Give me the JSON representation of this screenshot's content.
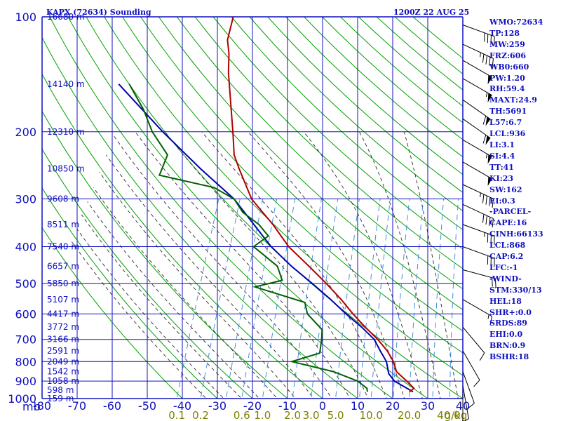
{
  "header": {
    "title": "KAPX (72634) Sounding",
    "datetime": "1200Z 22 AUG 25"
  },
  "indices": [
    "WMO:72634",
    "TP:128",
    "MW:259",
    "FRZ:606",
    "WB0:660",
    "PW:1.20",
    "RH:59.4",
    "MAXT:24.9",
    "TH:5691",
    "L57:6.7",
    "LCL:936",
    "LI:3.1",
    "SI:4.4",
    "TT:41",
    "KI:23",
    "SW:162",
    "EI:0.3",
    "-PARCEL-",
    "CAPE:16",
    "CINH:66133",
    "LCL:868",
    "CAP:6.2",
    "LFC:-1",
    "-WIND-",
    "STM:330/13",
    "HEL:18",
    "SHR+:0.0",
    "SRDS:89",
    "EHI:0.0",
    "BRN:0.9",
    "BSHR:18"
  ],
  "colors": {
    "grid": "#1010c0",
    "isotherm": "#1010c0",
    "dry_adiabat": "#00a000",
    "moist_adiabat": "#404040",
    "mixing_ratio": "#4090e0",
    "temperature": "#b00000",
    "dewpoint": "#006000",
    "parcel": "#0000b0",
    "wind": "#000000"
  },
  "chart_data": {
    "type": "skew-t",
    "ylabel_unit": "mb",
    "pressure_levels": [
      100,
      200,
      300,
      400,
      500,
      600,
      700,
      800,
      900,
      1000
    ],
    "temperature_ticks": [
      -80,
      -70,
      -60,
      -50,
      -40,
      -30,
      -20,
      -10,
      0,
      10,
      20,
      30,
      40
    ],
    "temperature_tick_labels": [
      "-80",
      "-70",
      "-60",
      "-50",
      "-40",
      "-30",
      "-20",
      "-10",
      "0",
      "10",
      "20",
      "30",
      "40"
    ],
    "mixing_ratio_labels": [
      "0.1",
      "0.2",
      "0.6",
      "1.0",
      "2.0",
      "3.0",
      "5.0",
      "10.0",
      "20.0",
      "40.0"
    ],
    "mixing_ratio_unit": "g/kg",
    "height_labels": [
      {
        "p": 100,
        "text": "16680 m"
      },
      {
        "p": 150,
        "text": "14140 m"
      },
      {
        "p": 200,
        "text": "12310 m"
      },
      {
        "p": 250,
        "text": "10850 m"
      },
      {
        "p": 300,
        "text": "9608 m"
      },
      {
        "p": 350,
        "text": "8511 m"
      },
      {
        "p": 400,
        "text": "7540 m"
      },
      {
        "p": 450,
        "text": "6657 m"
      },
      {
        "p": 500,
        "text": "5850 m"
      },
      {
        "p": 550,
        "text": "5107 m"
      },
      {
        "p": 600,
        "text": "4417 m"
      },
      {
        "p": 650,
        "text": "3772 m"
      },
      {
        "p": 700,
        "text": "3166 m"
      },
      {
        "p": 750,
        "text": "2591 m"
      },
      {
        "p": 800,
        "text": "2049 m"
      },
      {
        "p": 850,
        "text": "1542 m"
      },
      {
        "p": 900,
        "text": "1058 m"
      },
      {
        "p": 950,
        "text": "598 m"
      },
      {
        "p": 1000,
        "text": "159 m"
      }
    ],
    "temperature_profile": [
      [
        100,
        -69
      ],
      [
        115,
        -68
      ],
      [
        125,
        -66
      ],
      [
        140,
        -64
      ],
      [
        175,
        -59
      ],
      [
        200,
        -56
      ],
      [
        230,
        -53
      ],
      [
        250,
        -50
      ],
      [
        300,
        -43
      ],
      [
        350,
        -34
      ],
      [
        400,
        -27
      ],
      [
        450,
        -19
      ],
      [
        500,
        -12
      ],
      [
        550,
        -6
      ],
      [
        600,
        -1
      ],
      [
        650,
        4
      ],
      [
        700,
        9
      ],
      [
        750,
        13
      ],
      [
        800,
        16
      ],
      [
        850,
        18
      ],
      [
        900,
        22
      ],
      [
        940,
        24.9
      ],
      [
        960,
        24
      ]
    ],
    "dewpoint_profile": [
      [
        150,
        -91
      ],
      [
        175,
        -84
      ],
      [
        200,
        -79
      ],
      [
        230,
        -72
      ],
      [
        260,
        -72
      ],
      [
        280,
        -55
      ],
      [
        300,
        -48
      ],
      [
        325,
        -44
      ],
      [
        350,
        -38
      ],
      [
        375,
        -34
      ],
      [
        400,
        -37
      ],
      [
        450,
        -28
      ],
      [
        490,
        -25
      ],
      [
        510,
        -32
      ],
      [
        560,
        -16
      ],
      [
        600,
        -14
      ],
      [
        660,
        -8
      ],
      [
        700,
        -7
      ],
      [
        760,
        -6
      ],
      [
        800,
        -13
      ],
      [
        850,
        0
      ],
      [
        900,
        8
      ],
      [
        940,
        11.5
      ],
      [
        960,
        12
      ]
    ],
    "parcel_profile": [
      [
        150,
        -94
      ],
      [
        200,
        -76
      ],
      [
        250,
        -61
      ],
      [
        300,
        -48
      ],
      [
        400,
        -32
      ],
      [
        450,
        -24
      ],
      [
        500,
        -16
      ],
      [
        550,
        -9
      ],
      [
        600,
        -3
      ],
      [
        650,
        3
      ],
      [
        700,
        8
      ],
      [
        750,
        11
      ],
      [
        800,
        14
      ],
      [
        860,
        16
      ],
      [
        900,
        18.5
      ],
      [
        960,
        25
      ]
    ],
    "wind_barbs": [
      {
        "p": 105,
        "dir": 290,
        "spd": 40
      },
      {
        "p": 118,
        "dir": 295,
        "spd": 45
      },
      {
        "p": 130,
        "dir": 300,
        "spd": 50
      },
      {
        "p": 145,
        "dir": 300,
        "spd": 55
      },
      {
        "p": 165,
        "dir": 305,
        "spd": 60
      },
      {
        "p": 185,
        "dir": 305,
        "spd": 60
      },
      {
        "p": 210,
        "dir": 300,
        "spd": 55
      },
      {
        "p": 240,
        "dir": 300,
        "spd": 50
      },
      {
        "p": 275,
        "dir": 295,
        "spd": 45
      },
      {
        "p": 310,
        "dir": 295,
        "spd": 40
      },
      {
        "p": 350,
        "dir": 290,
        "spd": 35
      },
      {
        "p": 400,
        "dir": 290,
        "spd": 30
      },
      {
        "p": 460,
        "dir": 285,
        "spd": 20
      },
      {
        "p": 550,
        "dir": 300,
        "spd": 15
      },
      {
        "p": 650,
        "dir": 320,
        "spd": 10
      },
      {
        "p": 750,
        "dir": 330,
        "spd": 10
      },
      {
        "p": 850,
        "dir": 340,
        "spd": 10
      },
      {
        "p": 925,
        "dir": 350,
        "spd": 5
      },
      {
        "p": 975,
        "dir": 0,
        "spd": 5
      }
    ]
  }
}
